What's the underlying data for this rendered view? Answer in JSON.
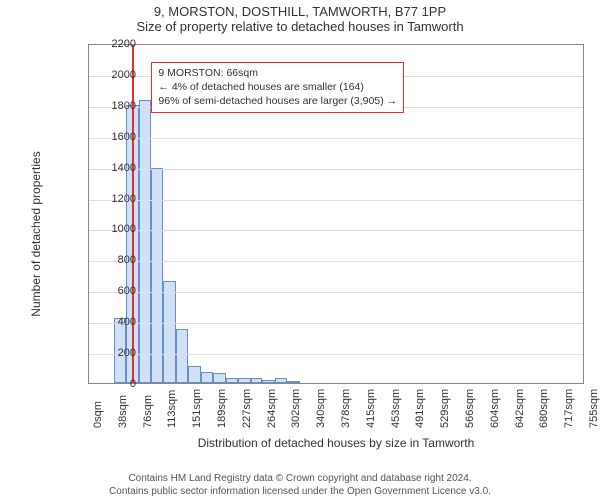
{
  "title_line1": "9, MORSTON, DOSTHILL, TAMWORTH, B77 1PP",
  "title_line2": "Size of property relative to detached houses in Tamworth",
  "ylabel": "Number of detached properties",
  "xlabel": "Distribution of detached houses by size in Tamworth",
  "footer_line1": "Contains HM Land Registry data © Crown copyright and database right 2024.",
  "footer_line2": "Contains public sector information licensed under the Open Government Licence v3.0.",
  "chart": {
    "type": "histogram",
    "background_color": "#ffffff",
    "plot_border_color": "#888888",
    "grid_color": "#dddddd",
    "bar_fill": "#cfe0f7",
    "bar_border": "#6a8fc7",
    "vline_color": "#e03030",
    "annot_border": "#e03030",
    "ylim_max": 2200,
    "ytick_step": 200,
    "xticks": [
      "0sqm",
      "38sqm",
      "76sqm",
      "113sqm",
      "151sqm",
      "189sqm",
      "227sqm",
      "264sqm",
      "302sqm",
      "340sqm",
      "378sqm",
      "415sqm",
      "453sqm",
      "491sqm",
      "529sqm",
      "566sqm",
      "604sqm",
      "642sqm",
      "680sqm",
      "717sqm",
      "755sqm"
    ],
    "bars": [
      {
        "x0": 38,
        "x1": 57,
        "v": 420
      },
      {
        "x0": 57,
        "x1": 76,
        "v": 1800
      },
      {
        "x0": 76,
        "x1": 95,
        "v": 1830
      },
      {
        "x0": 95,
        "x1": 113,
        "v": 1390
      },
      {
        "x0": 113,
        "x1": 132,
        "v": 660
      },
      {
        "x0": 132,
        "x1": 151,
        "v": 350
      },
      {
        "x0": 151,
        "x1": 170,
        "v": 110
      },
      {
        "x0": 170,
        "x1": 189,
        "v": 70
      },
      {
        "x0": 189,
        "x1": 208,
        "v": 65
      },
      {
        "x0": 208,
        "x1": 227,
        "v": 35
      },
      {
        "x0": 227,
        "x1": 246,
        "v": 30
      },
      {
        "x0": 246,
        "x1": 264,
        "v": 35
      },
      {
        "x0": 264,
        "x1": 283,
        "v": 20
      },
      {
        "x0": 283,
        "x1": 302,
        "v": 30
      },
      {
        "x0": 302,
        "x1": 321,
        "v": 10
      }
    ],
    "x_max": 755,
    "vline_x": 66,
    "annot": {
      "line1": "9 MORSTON: 66sqm",
      "line2": "← 4% of detached houses are smaller (164)",
      "line3": "96% of semi-detached houses are larger (3,905) →",
      "top_y_value": 2090,
      "left_x_value": 95
    },
    "tick_fontsize": 11,
    "label_fontsize": 12,
    "title_fontsize": 13
  }
}
